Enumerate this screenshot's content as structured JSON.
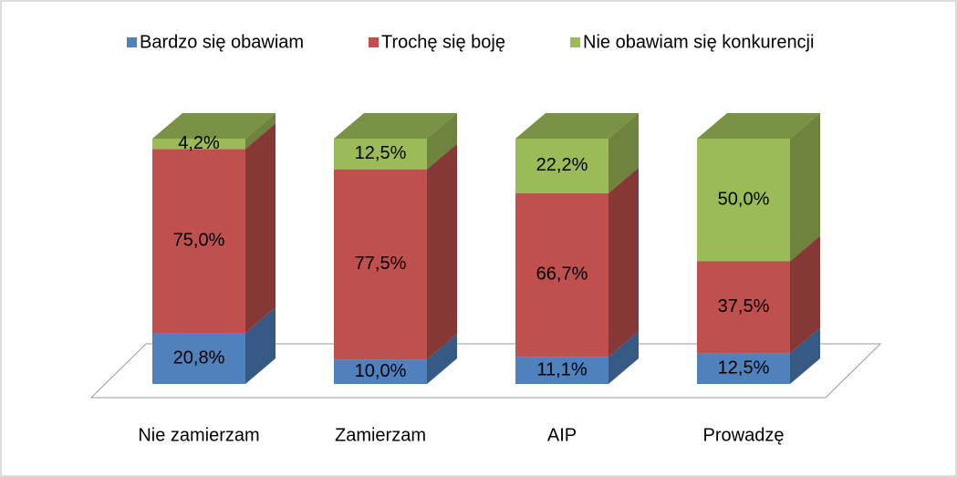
{
  "chart_data": {
    "type": "stacked-bar-3d",
    "categories": [
      "Nie zamierzam",
      "Zamierzam",
      "AIP",
      "Prowadzę"
    ],
    "series": [
      {
        "name": "Bardzo się obawiam",
        "color": "#4f81bd",
        "values": [
          20.8,
          10.0,
          11.1,
          12.5
        ],
        "value_labels": [
          "20,8%",
          "10,0%",
          "11,1%",
          "12,5%"
        ]
      },
      {
        "name": "Trochę się boję",
        "color": "#c0504d",
        "values": [
          75.0,
          77.5,
          66.7,
          37.5
        ],
        "value_labels": [
          "75,0%",
          "77,5%",
          "66,7%",
          "37,5%"
        ]
      },
      {
        "name": "Nie obawiam się konkurencji",
        "color": "#9bbb59",
        "values": [
          4.2,
          12.5,
          22.2,
          50.0
        ],
        "value_labels": [
          "4,2%",
          "12,5%",
          "22,2%",
          "50,0%"
        ]
      }
    ],
    "legend": "top"
  }
}
